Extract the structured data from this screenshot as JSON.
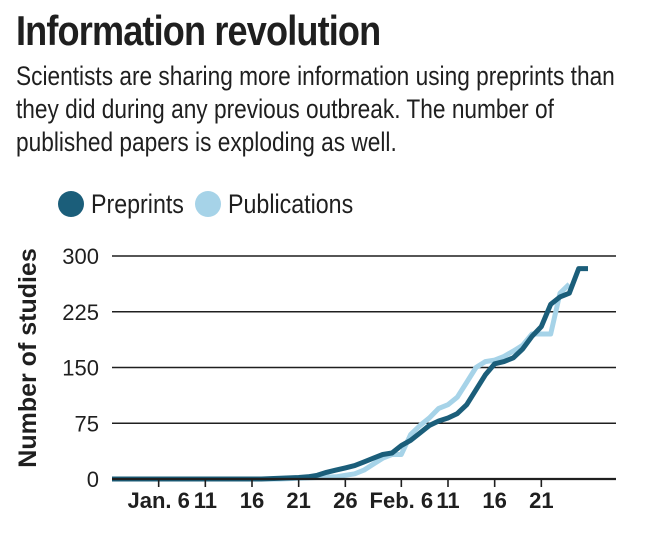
{
  "header": {
    "title": "Information revolution",
    "subtitle": "Scientists are sharing more information using preprints than they did during any previous outbreak. The number of published papers is exploding as well."
  },
  "colors": {
    "preprints": "#1b5e7a",
    "publications": "#a6d3e8",
    "axis": "#1f1f1f",
    "grid": "#1f1f1f"
  },
  "chart_data": {
    "type": "line",
    "ylabel": "Number of studies",
    "xlabel": "",
    "ylim": [
      0,
      300
    ],
    "yticks": [
      0,
      75,
      150,
      225,
      300
    ],
    "xlim": [
      0,
      54
    ],
    "xticks": [
      {
        "x": 5,
        "label": "Jan. 6"
      },
      {
        "x": 10,
        "label": "11"
      },
      {
        "x": 15,
        "label": "16"
      },
      {
        "x": 20,
        "label": "21"
      },
      {
        "x": 25,
        "label": "26"
      },
      {
        "x": 31,
        "label": "Feb. 6"
      },
      {
        "x": 36,
        "label": "11"
      },
      {
        "x": 41,
        "label": "16"
      },
      {
        "x": 46,
        "label": "21"
      }
    ],
    "grid": true,
    "legend_position": "top-left",
    "series": [
      {
        "name": "Preprints",
        "points": [
          [
            0,
            0
          ],
          [
            16,
            0
          ],
          [
            18,
            1
          ],
          [
            20,
            2
          ],
          [
            21,
            3
          ],
          [
            22,
            5
          ],
          [
            23,
            9
          ],
          [
            24,
            12
          ],
          [
            25,
            15
          ],
          [
            26,
            18
          ],
          [
            27,
            23
          ],
          [
            28,
            28
          ],
          [
            29,
            33
          ],
          [
            30,
            35
          ],
          [
            31,
            45
          ],
          [
            32,
            52
          ],
          [
            33,
            62
          ],
          [
            34,
            72
          ],
          [
            35,
            78
          ],
          [
            36,
            82
          ],
          [
            37,
            88
          ],
          [
            38,
            100
          ],
          [
            39,
            120
          ],
          [
            40,
            140
          ],
          [
            41,
            155
          ],
          [
            42,
            158
          ],
          [
            43,
            163
          ],
          [
            44,
            175
          ],
          [
            45,
            192
          ],
          [
            46,
            205
          ],
          [
            47,
            235
          ],
          [
            48,
            245
          ],
          [
            49,
            250
          ],
          [
            50,
            283
          ],
          [
            51,
            283
          ]
        ]
      },
      {
        "name": "Publications",
        "points": [
          [
            0,
            0
          ],
          [
            18,
            0
          ],
          [
            20,
            1
          ],
          [
            22,
            2
          ],
          [
            24,
            3
          ],
          [
            25,
            5
          ],
          [
            26,
            7
          ],
          [
            27,
            12
          ],
          [
            28,
            20
          ],
          [
            29,
            28
          ],
          [
            30,
            33
          ],
          [
            31,
            33
          ],
          [
            32,
            60
          ],
          [
            33,
            72
          ],
          [
            34,
            82
          ],
          [
            35,
            95
          ],
          [
            36,
            100
          ],
          [
            37,
            110
          ],
          [
            38,
            130
          ],
          [
            39,
            150
          ],
          [
            40,
            158
          ],
          [
            41,
            160
          ],
          [
            42,
            165
          ],
          [
            43,
            172
          ],
          [
            44,
            180
          ],
          [
            45,
            195
          ],
          [
            46,
            195
          ],
          [
            47,
            195
          ],
          [
            48,
            250
          ],
          [
            49,
            262
          ]
        ]
      }
    ]
  }
}
